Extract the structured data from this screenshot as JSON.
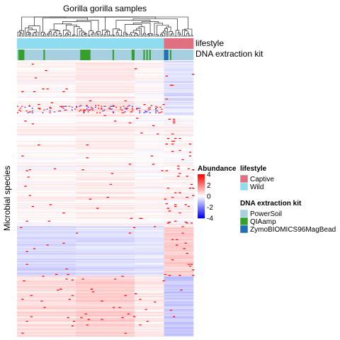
{
  "chart_data": {
    "type": "heatmap",
    "title": "Gorilla gorilla samples",
    "ylabel": "Microbial species",
    "n_samples": 120,
    "n_species": 300,
    "value_range": [
      -4,
      4
    ],
    "color_scale": {
      "low": "#0000ff",
      "mid": "#ffffff",
      "high": "#ff0000"
    },
    "annotations": [
      {
        "name": "lifestyle",
        "groups": [
          {
            "label": "Wild",
            "count": 100
          },
          {
            "label": "Captive",
            "count": 20
          }
        ]
      },
      {
        "name": "DNA extraction kit",
        "groups": [
          {
            "label": "PowerSoil",
            "count": 98
          },
          {
            "label": "QIAamp",
            "count": 19
          },
          {
            "label": "ZymoBIOMICS96MagBead",
            "count": 3
          }
        ]
      }
    ],
    "legends": [
      {
        "title": "Abundance",
        "ticks": [
          "4",
          "2",
          "0",
          "-2",
          "-4"
        ],
        "tick_values": [
          4,
          2,
          0,
          -2,
          -4
        ]
      },
      {
        "title": "lifestyle",
        "entries": [
          {
            "label": "Captive",
            "color": "#e07080"
          },
          {
            "label": "Wild",
            "color": "#8fdcf0"
          }
        ]
      },
      {
        "title": "DNA extraction kit",
        "entries": [
          {
            "label": "PowerSoil",
            "color": "#a6cfe0"
          },
          {
            "label": "QIAamp",
            "color": "#33a02c"
          },
          {
            "label": "ZymoBIOMICS96MagBead",
            "color": "#1f6fb4"
          }
        ]
      }
    ],
    "dendrogram": "top (samples)",
    "grid": false,
    "legend_position": "right"
  }
}
